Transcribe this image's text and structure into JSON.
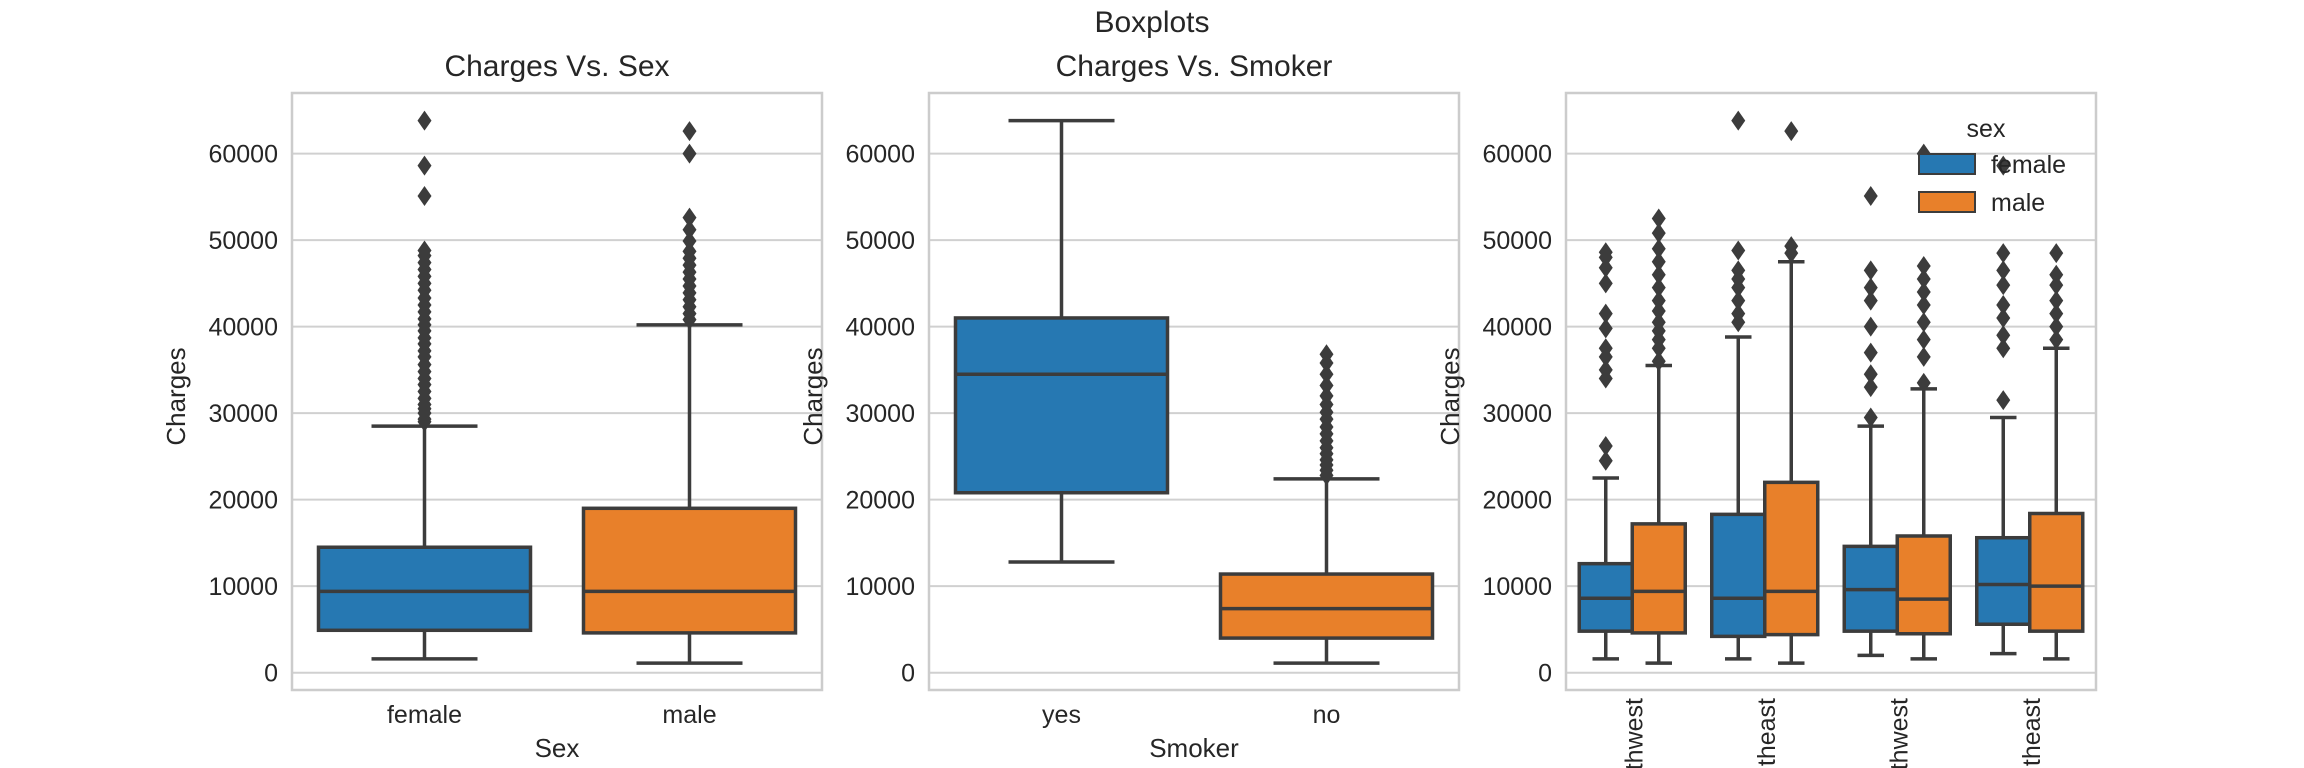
{
  "suptitle": "Boxplots",
  "colors": {
    "blue": "#2678b2",
    "orange": "#e8802a",
    "line": "#3c3c3c",
    "grid": "#d0d0d0",
    "frame": "#cccccc"
  },
  "chart_data": [
    {
      "type": "boxplot",
      "title": "Charges Vs. Sex",
      "xlabel": "Sex",
      "ylabel": "Charges",
      "ylim": [
        -2000,
        67000
      ],
      "yticks": [
        0,
        10000,
        20000,
        30000,
        40000,
        50000,
        60000
      ],
      "grid": true,
      "categories": [
        "female",
        "male"
      ],
      "boxes": [
        {
          "category": "female",
          "color": "blue",
          "whislo": 1600,
          "q1": 4900,
          "med": 9400,
          "q3": 14500,
          "whishi": 28500,
          "fliers": [
            29000,
            29300,
            30000,
            30500,
            31000,
            31700,
            32500,
            33300,
            34000,
            34800,
            35600,
            36500,
            37200,
            38000,
            38700,
            39500,
            40200,
            40900,
            41700,
            42500,
            43300,
            44200,
            45000,
            45800,
            46600,
            47400,
            48200,
            48800,
            55100,
            58600,
            63800
          ]
        },
        {
          "category": "male",
          "color": "orange",
          "whislo": 1100,
          "q1": 4600,
          "med": 9400,
          "q3": 19000,
          "whishi": 40200,
          "fliers": [
            40800,
            41500,
            42300,
            43100,
            43900,
            44700,
            45500,
            46300,
            47100,
            47900,
            48700,
            49900,
            51200,
            52600,
            60000,
            62600
          ]
        }
      ]
    },
    {
      "type": "boxplot",
      "title": "Charges Vs. Smoker",
      "xlabel": "Smoker",
      "ylabel": "Charges",
      "ylim": [
        -2000,
        67000
      ],
      "yticks": [
        0,
        10000,
        20000,
        30000,
        40000,
        50000,
        60000
      ],
      "grid": true,
      "categories": [
        "yes",
        "no"
      ],
      "boxes": [
        {
          "category": "yes",
          "color": "blue",
          "whislo": 12800,
          "q1": 20800,
          "med": 34500,
          "q3": 41000,
          "whishi": 63800,
          "fliers": []
        },
        {
          "category": "no",
          "color": "orange",
          "whislo": 1100,
          "q1": 4000,
          "med": 7400,
          "q3": 11400,
          "whishi": 22400,
          "fliers": [
            22800,
            23400,
            24000,
            24600,
            25300,
            26000,
            26800,
            27600,
            28400,
            29300,
            30100,
            31000,
            32000,
            33200,
            34500,
            35800,
            36800
          ]
        }
      ]
    },
    {
      "type": "boxplot",
      "title": "",
      "xlabel": "",
      "ylabel": "Charges",
      "ylim": [
        -2000,
        67000
      ],
      "yticks": [
        0,
        10000,
        20000,
        30000,
        40000,
        50000,
        60000
      ],
      "grid": true,
      "categories": [
        "thwest",
        "theast",
        "thwest",
        "theast"
      ],
      "legend": {
        "title": "sex",
        "entries": [
          {
            "label": "female",
            "color": "blue"
          },
          {
            "label": "male",
            "color": "orange"
          }
        ],
        "position": "top-right"
      },
      "boxes": [
        {
          "category": 0,
          "hue": "female",
          "color": "blue",
          "whislo": 1600,
          "q1": 4800,
          "med": 8600,
          "q3": 12600,
          "whishi": 22500,
          "fliers": [
            24500,
            26200,
            34000,
            35000,
            36500,
            37500,
            39800,
            41500,
            45000,
            46800,
            48000,
            48600
          ]
        },
        {
          "category": 0,
          "hue": "male",
          "color": "orange",
          "whislo": 1100,
          "q1": 4600,
          "med": 9400,
          "q3": 17200,
          "whishi": 35500,
          "fliers": [
            36000,
            37500,
            38500,
            39500,
            40500,
            41800,
            43000,
            44500,
            46000,
            47500,
            49000,
            50800,
            52500
          ]
        },
        {
          "category": 1,
          "hue": "female",
          "color": "blue",
          "whislo": 1600,
          "q1": 4200,
          "med": 8600,
          "q3": 18300,
          "whishi": 38800,
          "fliers": [
            40500,
            41500,
            43000,
            44500,
            45500,
            46500,
            48800,
            63800
          ]
        },
        {
          "category": 1,
          "hue": "male",
          "color": "orange",
          "whislo": 1100,
          "q1": 4400,
          "med": 9400,
          "q3": 22000,
          "whishi": 47500,
          "fliers": [
            48500,
            49300,
            62600
          ]
        },
        {
          "category": 2,
          "hue": "female",
          "color": "blue",
          "whislo": 2000,
          "q1": 4800,
          "med": 9600,
          "q3": 14600,
          "whishi": 28500,
          "fliers": [
            29500,
            33000,
            34500,
            37000,
            40000,
            43000,
            44500,
            46500,
            55100
          ]
        },
        {
          "category": 2,
          "hue": "male",
          "color": "orange",
          "whislo": 1600,
          "q1": 4500,
          "med": 8500,
          "q3": 15800,
          "whishi": 32800,
          "fliers": [
            33500,
            36500,
            38500,
            40500,
            42500,
            44000,
            45500,
            47000,
            60000
          ]
        },
        {
          "category": 3,
          "hue": "female",
          "color": "blue",
          "whislo": 2200,
          "q1": 5600,
          "med": 10200,
          "q3": 15600,
          "whishi": 29500,
          "fliers": [
            31500,
            37500,
            39000,
            41000,
            42500,
            44800,
            46500,
            48500,
            58600
          ]
        },
        {
          "category": 3,
          "hue": "male",
          "color": "orange",
          "whislo": 1600,
          "q1": 4800,
          "med": 10000,
          "q3": 18400,
          "whishi": 37500,
          "fliers": [
            38500,
            40000,
            41500,
            43000,
            44800,
            46000,
            48500
          ]
        }
      ]
    }
  ]
}
